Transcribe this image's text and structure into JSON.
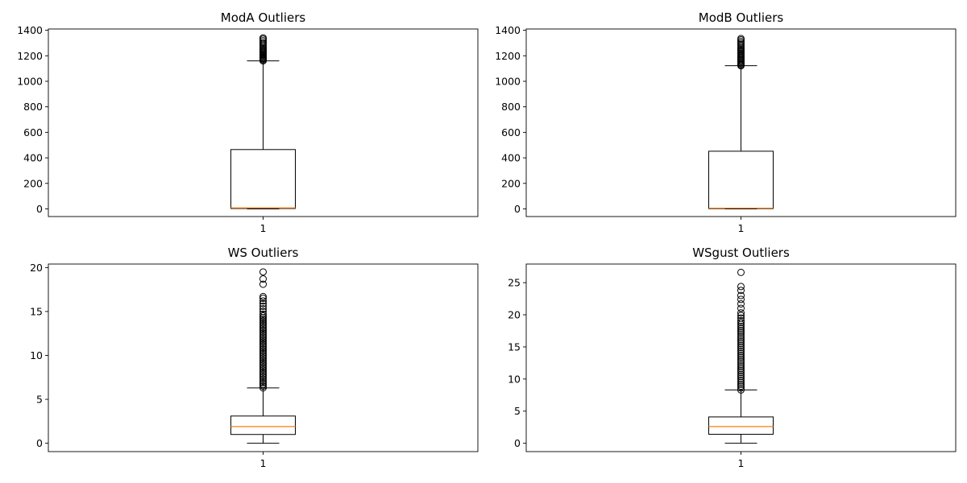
{
  "chart_data": [
    {
      "type": "box",
      "title": "ModA Outliers",
      "categories": [
        "1"
      ],
      "ylim": [
        -60,
        1410
      ],
      "yticks": [
        0,
        200,
        400,
        600,
        800,
        1000,
        1200,
        1400
      ],
      "box": {
        "whislo": 0,
        "q1": 3,
        "med": 8,
        "q3": 465,
        "whishi": 1160
      },
      "outliers": [
        1160,
        1168,
        1175,
        1182,
        1190,
        1198,
        1205,
        1212,
        1220,
        1228,
        1235,
        1242,
        1250,
        1260,
        1270,
        1282,
        1295,
        1305,
        1318,
        1330,
        1340
      ]
    },
    {
      "type": "box",
      "title": "ModB Outliers",
      "categories": [
        "1"
      ],
      "ylim": [
        -60,
        1410
      ],
      "yticks": [
        0,
        200,
        400,
        600,
        800,
        1000,
        1200,
        1400
      ],
      "box": {
        "whislo": 0,
        "q1": 2,
        "med": 6,
        "q3": 452,
        "whishi": 1122
      },
      "outliers": [
        1122,
        1130,
        1138,
        1146,
        1154,
        1162,
        1170,
        1178,
        1186,
        1194,
        1202,
        1210,
        1218,
        1226,
        1235,
        1245,
        1255,
        1265,
        1278,
        1290,
        1300,
        1312,
        1325,
        1335
      ]
    },
    {
      "type": "box",
      "title": "WS Outliers",
      "categories": [
        "1"
      ],
      "ylim": [
        -0.95,
        20.4
      ],
      "yticks": [
        0,
        5,
        10,
        15,
        20
      ],
      "box": {
        "whislo": 0,
        "q1": 1.0,
        "med": 1.9,
        "q3": 3.1,
        "whishi": 6.3
      },
      "outliers": [
        6.3,
        6.5,
        6.7,
        6.9,
        7.1,
        7.3,
        7.5,
        7.7,
        7.9,
        8.1,
        8.3,
        8.5,
        8.7,
        8.9,
        9.1,
        9.3,
        9.5,
        9.7,
        9.9,
        10.1,
        10.3,
        10.5,
        10.7,
        10.9,
        11.1,
        11.3,
        11.5,
        11.7,
        11.9,
        12.1,
        12.3,
        12.5,
        12.7,
        12.9,
        13.1,
        13.3,
        13.5,
        13.7,
        13.9,
        14.1,
        14.3,
        14.5,
        14.7,
        15.0,
        15.3,
        15.6,
        15.9,
        16.2,
        16.5,
        16.7,
        18.1,
        18.7,
        19.5
      ]
    },
    {
      "type": "box",
      "title": "WSgust Outliers",
      "categories": [
        "1"
      ],
      "ylim": [
        -1.3,
        27.9
      ],
      "yticks": [
        0,
        5,
        10,
        15,
        20,
        25
      ],
      "box": {
        "whislo": 0,
        "q1": 1.4,
        "med": 2.6,
        "q3": 4.1,
        "whishi": 8.3
      },
      "outliers": [
        8.3,
        8.6,
        8.9,
        9.2,
        9.5,
        9.8,
        10.1,
        10.4,
        10.7,
        11.0,
        11.3,
        11.6,
        11.9,
        12.2,
        12.5,
        12.8,
        13.1,
        13.4,
        13.7,
        14.0,
        14.3,
        14.6,
        14.9,
        15.2,
        15.5,
        15.8,
        16.1,
        16.4,
        16.7,
        17.0,
        17.3,
        17.6,
        17.9,
        18.2,
        18.5,
        18.8,
        19.1,
        19.5,
        19.9,
        20.3,
        21.0,
        21.7,
        22.4,
        23.0,
        23.8,
        24.4,
        26.6
      ]
    }
  ],
  "style": {
    "box_color": "#000000",
    "median_color": "#ff7f0e",
    "background": "#ffffff"
  }
}
